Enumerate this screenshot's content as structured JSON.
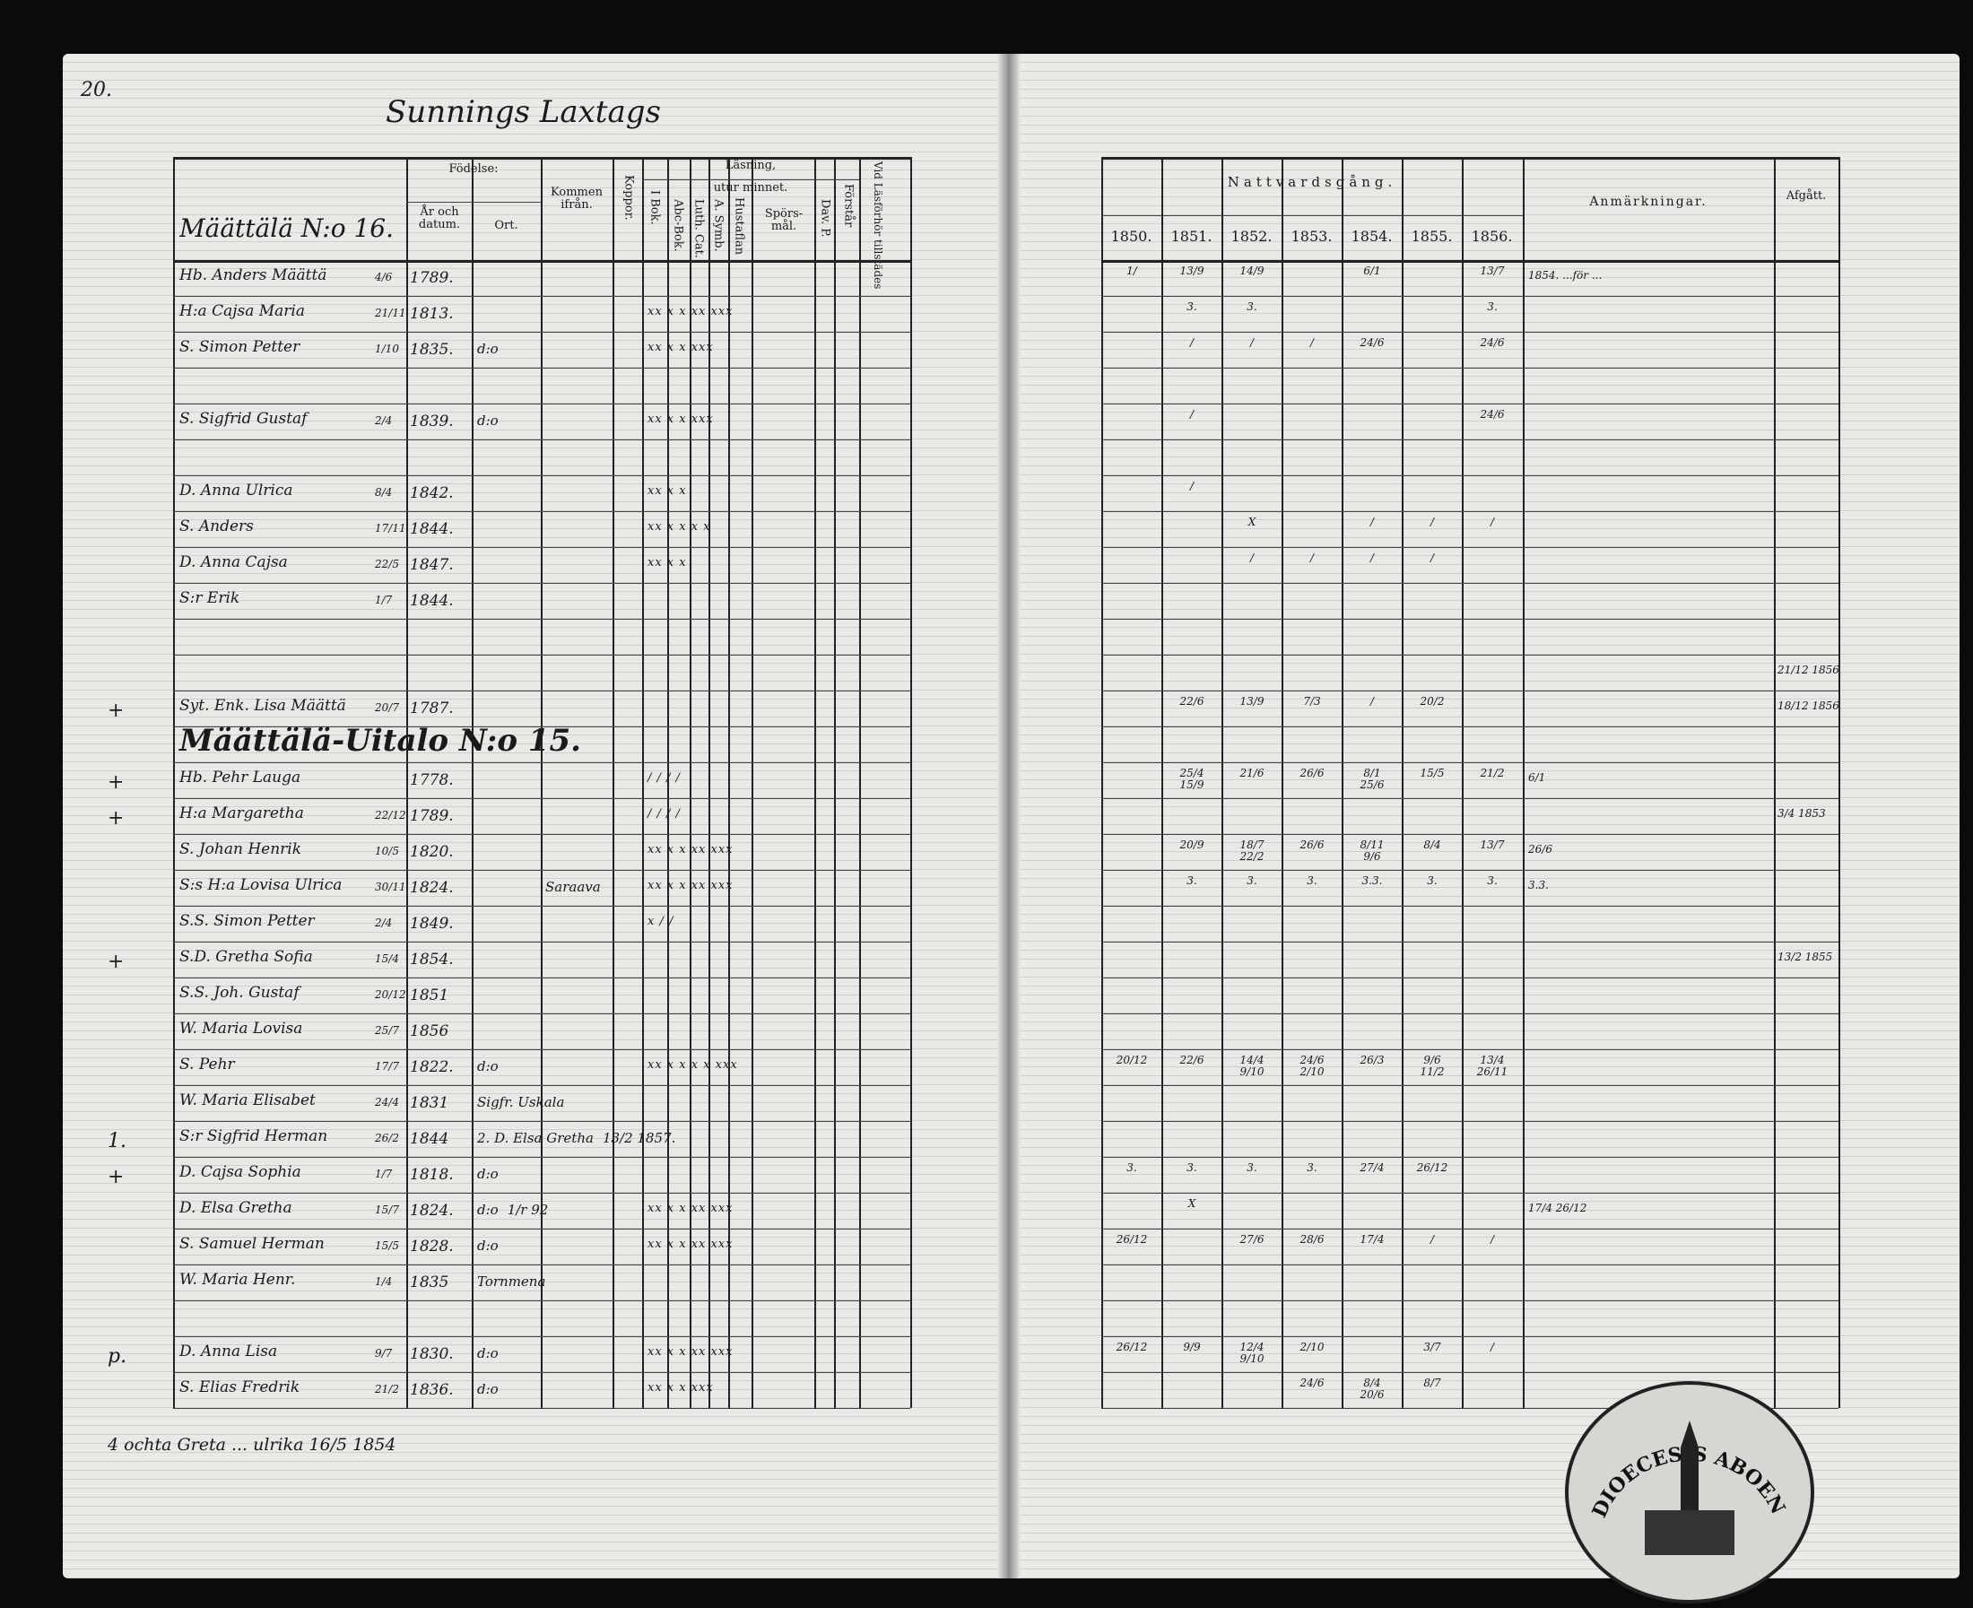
{
  "page_number": "20.",
  "village_heading": "Sunnings Laxtags",
  "left_headers": {
    "household": "Määttälä N:o 16.",
    "fodelse": "Födelse:",
    "ar_och_datum": "År och datum.",
    "ort": "Ort.",
    "kommen_ifran": "Kommen ifrån.",
    "koppor": "Koppor.",
    "lasning": "Läsning,",
    "utur_minnet": "utur minnet.",
    "i_bok": "I Bok.",
    "abc_bok": "Abc-Bok.",
    "luth_cat": "Luth. Cat.",
    "a_symb": "A. Symb.",
    "hustaflan": "Hustaflan",
    "sporsmal": "Spörs-mål.",
    "dav_p": "Dav. P.",
    "forstar": "Förstår",
    "vid_lasforhor": "Vid Läsförhör tillstädes"
  },
  "right_headers": {
    "nattvardsgang": "Nattvardsgång.",
    "years": [
      "1850.",
      "1851.",
      "1852.",
      "1853.",
      "1854.",
      "1855.",
      "1856."
    ],
    "anmarkningar": "Anmärkningar.",
    "afgatt": "Afgått."
  },
  "rows": [
    {
      "mark": "",
      "name": "Hb. Anders Määttä",
      "day": "4/6",
      "year": "1789.",
      "ort": "",
      "kommen": "",
      "reading": "",
      "natt": [
        "1/",
        "13/9",
        "14/9",
        "",
        "6/1",
        "",
        "13/7"
      ],
      "anm": "1854. ...för ...",
      "afgatt": ""
    },
    {
      "mark": "",
      "name": "H:a Cajsa Maria",
      "day": "21/11",
      "year": "1813.",
      "ort": "",
      "kommen": "",
      "reading": "xx x x xx xxx",
      "natt": [
        "",
        "3.",
        "3.",
        "",
        "",
        "",
        "3."
      ],
      "anm": "",
      "afgatt": ""
    },
    {
      "mark": "",
      "name": "S. Simon Petter",
      "day": "1/10",
      "year": "1835.",
      "ort": "d:o",
      "kommen": "",
      "reading": "xx x x   xxx",
      "natt": [
        "",
        "/",
        "/",
        "/",
        "24/6",
        "",
        "24/6"
      ],
      "anm": "",
      "afgatt": ""
    },
    {
      "mark": "",
      "name": "",
      "day": "",
      "year": "",
      "ort": "",
      "kommen": "",
      "reading": "",
      "natt": [
        "",
        "",
        "",
        "",
        "",
        "",
        ""
      ],
      "anm": "",
      "afgatt": ""
    },
    {
      "mark": "",
      "name": "S. Sigfrid Gustaf",
      "day": "2/4",
      "year": "1839.",
      "ort": "d:o",
      "kommen": "",
      "reading": "xx x x   xxx",
      "natt": [
        "",
        "/",
        "",
        "",
        "",
        "",
        "24/6"
      ],
      "anm": "",
      "afgatt": ""
    },
    {
      "mark": "",
      "name": "",
      "day": "",
      "year": "",
      "ort": "",
      "kommen": "",
      "reading": "",
      "natt": [
        "",
        "",
        "",
        "",
        "",
        "",
        ""
      ],
      "anm": "",
      "afgatt": ""
    },
    {
      "mark": "",
      "name": "D. Anna Ulrica",
      "day": "8/4",
      "year": "1842.",
      "ort": "",
      "kommen": "",
      "reading": "xx x x",
      "natt": [
        "",
        "/",
        "",
        "",
        "",
        "",
        ""
      ],
      "anm": "",
      "afgatt": ""
    },
    {
      "mark": "",
      "name": "S. Anders",
      "day": "17/11",
      "year": "1844.",
      "ort": "",
      "kommen": "",
      "reading": "xx x x x x",
      "natt": [
        "",
        "",
        "X",
        "",
        "/",
        "/",
        "/"
      ],
      "anm": "",
      "afgatt": ""
    },
    {
      "mark": "",
      "name": "D. Anna Cajsa",
      "day": "22/5",
      "year": "1847.",
      "ort": "",
      "kommen": "",
      "reading": "xx x x",
      "natt": [
        "",
        "",
        "/",
        "/",
        "/",
        "/",
        ""
      ],
      "anm": "",
      "afgatt": ""
    },
    {
      "mark": "",
      "name": "S:r Erik",
      "day": "1/7",
      "year": "1844.",
      "ort": "",
      "kommen": "",
      "reading": "",
      "natt": [
        "",
        "",
        "",
        "",
        "",
        "",
        ""
      ],
      "anm": "",
      "afgatt": ""
    },
    {
      "mark": "",
      "name": "",
      "day": "",
      "year": "",
      "ort": "",
      "kommen": "",
      "reading": "",
      "natt": [
        "",
        "",
        "",
        "",
        "",
        "",
        ""
      ],
      "anm": "",
      "afgatt": ""
    },
    {
      "mark": "",
      "name": "",
      "day": "",
      "year": "",
      "ort": "",
      "kommen": "",
      "reading": "",
      "natt": [
        "",
        "",
        "",
        "",
        "",
        "",
        ""
      ],
      "anm": "",
      "afgatt": "21/12 1856"
    },
    {
      "mark": "+",
      "name": "Syt. Enk. Lisa Määttä",
      "day": "20/7",
      "year": "1787.",
      "ort": "",
      "kommen": "",
      "reading": "",
      "natt": [
        "",
        "22/6",
        "13/9",
        "7/3",
        "/",
        "20/2",
        ""
      ],
      "anm": "",
      "afgatt": "18/12 1856"
    },
    {
      "mark": "",
      "name": "Määttälä-Uitalo N:o 15.",
      "heading": true,
      "day": "",
      "year": "",
      "ort": "",
      "kommen": "",
      "reading": "",
      "natt": [
        "",
        "",
        "",
        "",
        "",
        "",
        ""
      ],
      "anm": "",
      "afgatt": ""
    },
    {
      "mark": "+",
      "name": "Hb. Pehr Lauga",
      "day": "",
      "year": "1778.",
      "ort": "",
      "kommen": "",
      "reading": "/ / / /",
      "natt": [
        "",
        "25/4 15/9",
        "21/6",
        "26/6",
        "8/1 25/6",
        "15/5",
        "21/2"
      ],
      "anm": "6/1",
      "afgatt": ""
    },
    {
      "mark": "+",
      "name": "H:a Margaretha",
      "day": "22/12",
      "year": "1789.",
      "ort": "",
      "kommen": "",
      "reading": "/ / / /",
      "natt": [
        "",
        "",
        "",
        "",
        "",
        "",
        ""
      ],
      "anm": "",
      "afgatt": "3/4 1853"
    },
    {
      "mark": "",
      "name": "S. Johan Henrik",
      "day": "10/5",
      "year": "1820.",
      "ort": "",
      "kommen": "",
      "reading": "xx x x xx xxx",
      "natt": [
        "",
        "20/9",
        "18/7 22/2",
        "26/6",
        "8/11 9/6",
        "8/4",
        "13/7"
      ],
      "anm": "26/6",
      "afgatt": ""
    },
    {
      "mark": "",
      "name": "S:s H:a Lovisa Ulrica",
      "day": "30/11",
      "year": "1824.",
      "ort": "",
      "kommen": "Saraava",
      "reading": "xx x x xx xxx",
      "natt": [
        "",
        "3.",
        "3.",
        "3.",
        "3.3.",
        "3.",
        "3."
      ],
      "anm": "3.3.",
      "afgatt": ""
    },
    {
      "mark": "",
      "name": "S.S. Simon Petter",
      "day": "2/4",
      "year": "1849.",
      "ort": "",
      "kommen": "",
      "reading": "x / /",
      "natt": [
        "",
        "",
        "",
        "",
        "",
        "",
        ""
      ],
      "anm": "",
      "afgatt": ""
    },
    {
      "mark": "+",
      "name": "S.D. Gretha Sofia",
      "day": "15/4",
      "year": "1854.",
      "ort": "",
      "kommen": "",
      "reading": "",
      "natt": [
        "",
        "",
        "",
        "",
        "",
        "",
        ""
      ],
      "anm": "",
      "afgatt": "13/2 1855"
    },
    {
      "mark": "",
      "name": "S.S. Joh. Gustaf",
      "day": "20/12",
      "year": "1851",
      "ort": "",
      "kommen": "",
      "reading": "",
      "natt": [
        "",
        "",
        "",
        "",
        "",
        "",
        ""
      ],
      "anm": "",
      "afgatt": ""
    },
    {
      "mark": "",
      "name": "W. Maria Lovisa",
      "day": "25/7",
      "year": "1856",
      "ort": "",
      "kommen": "",
      "reading": "",
      "natt": [
        "",
        "",
        "",
        "",
        "",
        "",
        ""
      ],
      "anm": "",
      "afgatt": ""
    },
    {
      "mark": "",
      "name": "S. Pehr",
      "day": "17/7",
      "year": "1822.",
      "ort": "d:o",
      "kommen": "",
      "reading": "xx x x x x xxx",
      "natt": [
        "20/12",
        "22/6",
        "14/4 9/10",
        "24/6 2/10",
        "26/3",
        "9/6 11/2",
        "13/4 26/11"
      ],
      "anm": "",
      "afgatt": ""
    },
    {
      "mark": "",
      "name": "W. Maria Elisabet",
      "day": "24/4",
      "year": "1831",
      "ort": "Sigfr. Uskala",
      "kommen": "",
      "reading": "",
      "natt": [
        "",
        "",
        "",
        "",
        "",
        "",
        ""
      ],
      "anm": "",
      "afgatt": ""
    },
    {
      "mark": "1.",
      "name": "S:r Sigfrid Herman",
      "day": "26/2",
      "year": "1844",
      "ort": "2. D. Elsa Gretha",
      "kommen": "13/2 1857.",
      "reading": "",
      "natt": [
        "",
        "",
        "",
        "",
        "",
        "",
        ""
      ],
      "anm": "",
      "afgatt": ""
    },
    {
      "mark": "+",
      "name": "D. Cajsa Sophia",
      "day": "1/7",
      "year": "1818.",
      "ort": "d:o",
      "kommen": "",
      "reading": "",
      "natt": [
        "3.",
        "3.",
        "3.",
        "3.",
        "27/4",
        "26/12",
        ""
      ],
      "anm": "",
      "afgatt": ""
    },
    {
      "mark": "",
      "name": "D. Elsa Gretha",
      "day": "15/7",
      "year": "1824.",
      "ort": "d:o",
      "kommen": "1/r 92",
      "reading": "xx x x xx xxx",
      "natt": [
        "",
        "X",
        "",
        "",
        "",
        "",
        ""
      ],
      "anm": "17/4 26/12",
      "afgatt": ""
    },
    {
      "mark": "",
      "name": "S. Samuel Herman",
      "day": "15/5",
      "year": "1828.",
      "ort": "d:o",
      "kommen": "",
      "reading": "xx x x xx xxx",
      "natt": [
        "26/12",
        "",
        "27/6",
        "28/6",
        "17/4",
        "/",
        "/"
      ],
      "anm": "",
      "afgatt": ""
    },
    {
      "mark": "",
      "name": "W. Maria Henr.",
      "day": "1/4",
      "year": "1835",
      "ort": "Tornmena",
      "kommen": "",
      "reading": "",
      "natt": [
        "",
        "",
        "",
        "",
        "",
        "",
        ""
      ],
      "anm": "",
      "afgatt": ""
    },
    {
      "mark": "",
      "name": "",
      "day": "",
      "year": "",
      "ort": "",
      "kommen": "",
      "reading": "",
      "natt": [
        "",
        "",
        "",
        "",
        "",
        "",
        ""
      ],
      "anm": "",
      "afgatt": ""
    },
    {
      "mark": "p.",
      "name": "D. Anna Lisa",
      "day": "9/7",
      "year": "1830.",
      "ort": "d:o",
      "kommen": "",
      "reading": "xx x x xx xxx",
      "natt": [
        "26/12",
        "9/9",
        "12/4 9/10",
        "2/10",
        "",
        "3/7",
        "/"
      ],
      "anm": "",
      "afgatt": ""
    },
    {
      "mark": "",
      "name": "S. Elias Fredrik",
      "day": "21/2",
      "year": "1836.",
      "ort": "d:o",
      "kommen": "",
      "reading": "xx x x  xxx",
      "natt": [
        "",
        "",
        "",
        "24/6",
        "8/4 20/6",
        "8/7",
        ""
      ],
      "anm": "",
      "afgatt": ""
    }
  ],
  "footer_note": "4 ochta Greta ... ulrika 16/5 1854",
  "stamp_text": "DIOECESIS ABOENSIS"
}
